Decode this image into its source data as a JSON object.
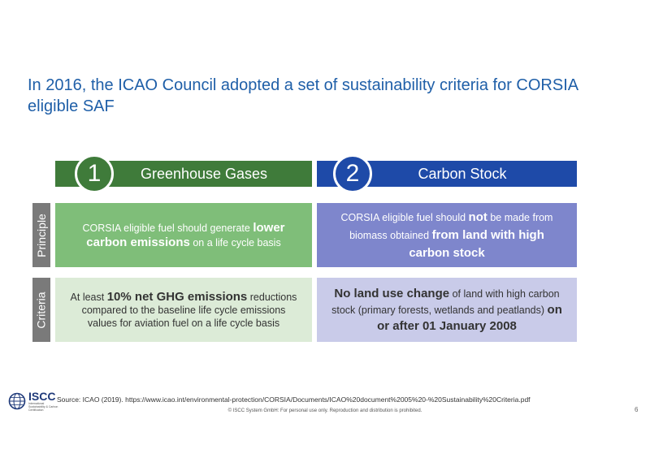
{
  "title": "In 2016, the ICAO Council adopted a set of sustainability criteria for CORSIA eligible SAF",
  "columns": [
    {
      "number": "1",
      "heading": "Greenhouse Gases",
      "color": "#3f7b3a",
      "principle": {
        "pre": "CORSIA eligible fuel should generate ",
        "bold": "lower carbon emissions",
        "post": " on a life cycle basis"
      },
      "criteria": {
        "pre": "At least ",
        "bold": "10% net GHG emissions",
        "post": " reductions compared to the baseline life cycle emissions values for aviation fuel on a life cycle basis"
      }
    },
    {
      "number": "2",
      "heading": "Carbon Stock",
      "color": "#1e4aa8",
      "principle": {
        "pre": "CORSIA eligible fuel should ",
        "bold1": "not",
        "mid": " be made from biomass obtained ",
        "bold2": "from land with high carbon stock"
      },
      "criteria": {
        "bold1": "No land use change",
        "mid": " of land with high carbon stock (primary forests, wetlands and peatlands) ",
        "bold2": "on or after 01 January 2008"
      }
    }
  ],
  "row_labels": {
    "principle": "Principle",
    "criteria": "Criteria"
  },
  "logo": {
    "name": "ISCC",
    "subtitle": "International Sustainability & Carbon Certification",
    "icon": "globe-icon"
  },
  "source": "Source: ICAO (2019). https://www.icao.int/environmental-protection/CORSIA/Documents/ICAO%20document%2005%20-%20Sustainability%20Criteria.pdf",
  "copyright": "© ISCC System GmbH: For personal use only. Reproduction and distribution is prohibited.",
  "page_number": "6"
}
